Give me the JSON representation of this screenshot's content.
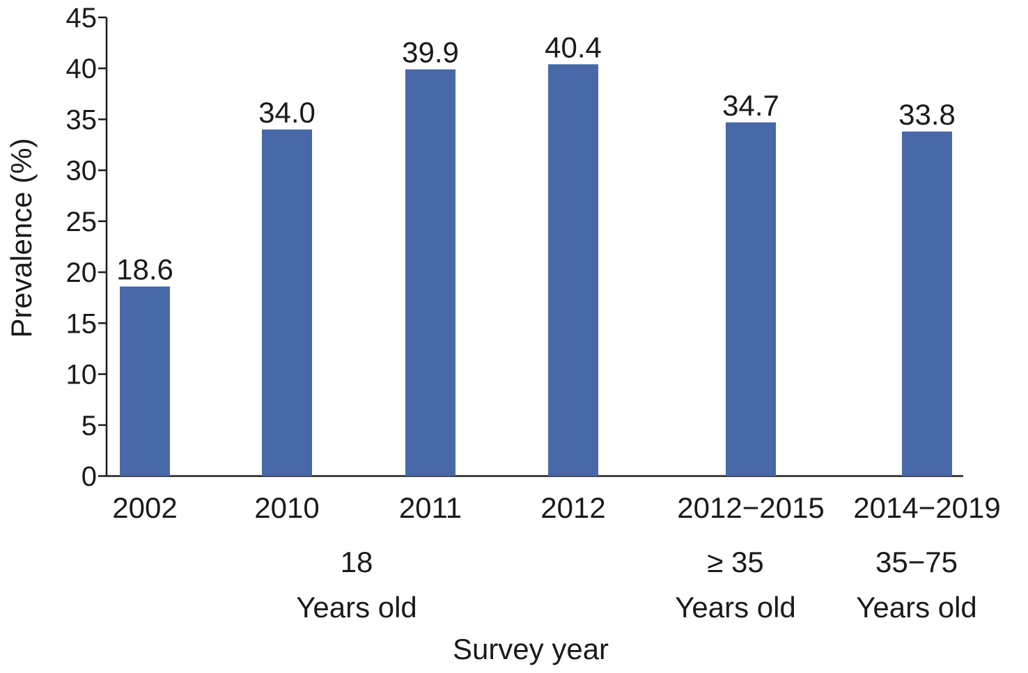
{
  "chart_data": {
    "type": "bar",
    "categories": [
      "2002",
      "2010",
      "2011",
      "2012",
      "2012−2015",
      "2014−2019"
    ],
    "values": [
      18.6,
      34.0,
      39.9,
      40.4,
      34.7,
      33.8
    ],
    "value_labels": [
      "18.6",
      "34.0",
      "39.9",
      "40.4",
      "34.7",
      "33.8"
    ],
    "ylabel": "Prevalence (%)",
    "xlabel": "Survey year",
    "ylim": [
      0,
      45
    ],
    "yticks": [
      "0",
      "5",
      "10",
      "15",
      "20",
      "25",
      "30",
      "35",
      "40",
      "45"
    ],
    "group_labels": [
      {
        "lines": [
          "18",
          "Years old"
        ]
      },
      {
        "lines": [
          "≥ 35",
          "Years old"
        ]
      },
      {
        "lines": [
          "35−75",
          "Years old"
        ]
      }
    ],
    "bar_color": "#4868A8",
    "grid": false,
    "legend": "none"
  }
}
